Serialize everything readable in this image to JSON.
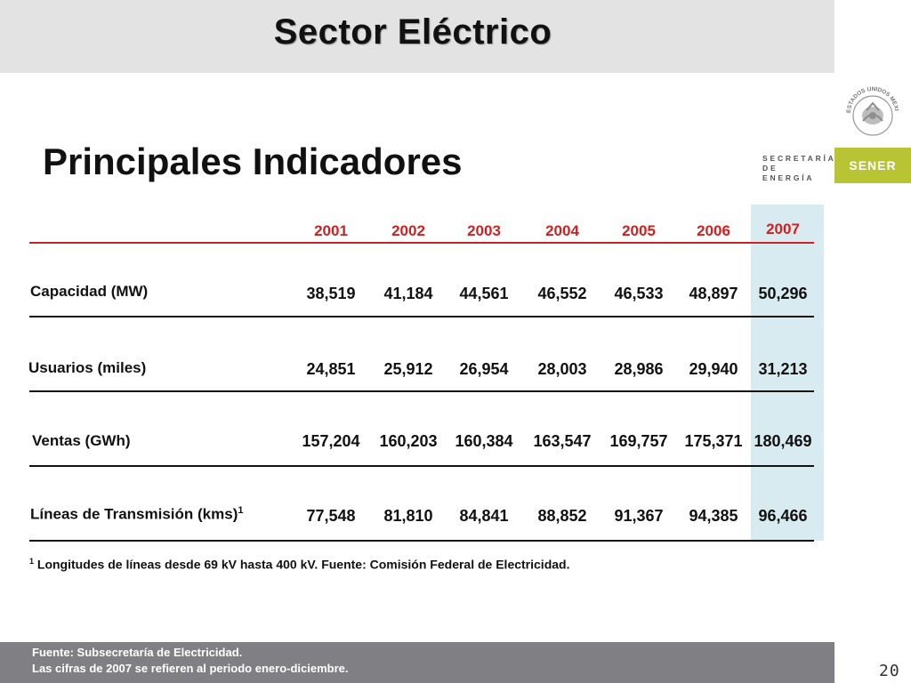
{
  "header": {
    "title": "Sector Eléctrico"
  },
  "branding": {
    "secretaria_line1": "SECRETARÍA",
    "secretaria_line2": "DE ENERGÍA",
    "sener": "SENER",
    "seal_text": "ESTADOS UNIDOS MEXICANOS",
    "accent_color": "#b8c434"
  },
  "subtitle": "Principales Indicadores",
  "table": {
    "years": [
      "2001",
      "2002",
      "2003",
      "2004",
      "2005",
      "2006",
      "2007"
    ],
    "rows": [
      {
        "label": "Capacidad (MW)",
        "sup": "",
        "values": [
          "38,519",
          "41,184",
          "44,561",
          "46,552",
          "46,533",
          "48,897",
          "50,296"
        ]
      },
      {
        "label": "Usuarios (miles)",
        "sup": "",
        "values": [
          "24,851",
          "25,912",
          "26,954",
          "28,003",
          "28,986",
          "29,940",
          "31,213"
        ]
      },
      {
        "label": "Ventas (GWh)",
        "sup": "",
        "values": [
          "157,204",
          "160,203",
          "160,384",
          "163,547",
          "169,757",
          "175,371",
          "180,469"
        ]
      },
      {
        "label": "Líneas de Transmisión (kms)",
        "sup": "1",
        "values": [
          "77,548",
          "81,810",
          "84,841",
          "88,852",
          "91,367",
          "94,385",
          "96,466"
        ]
      }
    ]
  },
  "footnote": {
    "sup": "1",
    "text": "Longitudes de líneas desde 69 kV hasta 400 kV. Fuente: Comisión Federal de Electricidad."
  },
  "footer": {
    "line1": "Fuente: Subsecretaría de Electricidad.",
    "line2": "Las cifras de 2007 se refieren al periodo enero-diciembre."
  },
  "page_number": "20"
}
